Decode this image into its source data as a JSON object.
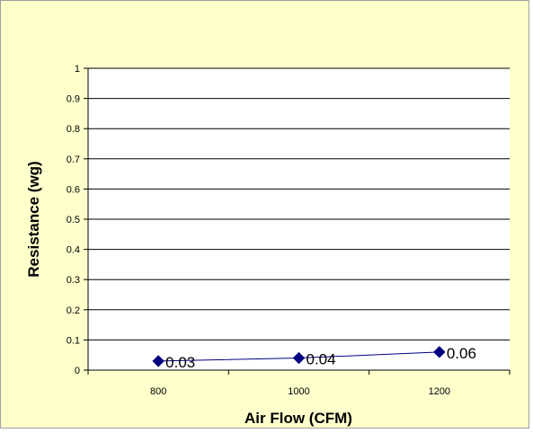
{
  "chart_data": {
    "type": "line",
    "title": "",
    "xlabel": "Air Flow (CFM)",
    "ylabel": "Resistance (wg)",
    "categories": [
      "800",
      "1000",
      "1200"
    ],
    "series": [
      {
        "values": [
          0.03,
          0.04,
          0.06
        ],
        "labels": [
          "0.03",
          "0.04",
          "0.06"
        ]
      }
    ],
    "ylim": [
      0,
      1
    ],
    "yticks": [
      0,
      0.1,
      0.2,
      0.3,
      0.4,
      0.5,
      0.6,
      0.7,
      0.8,
      0.9,
      1
    ],
    "ytick_labels": [
      "0",
      "0.1",
      "0.2",
      "0.3",
      "0.4",
      "0.5",
      "0.6",
      "0.7",
      "0.8",
      "0.9",
      "1"
    ],
    "grid": true,
    "legend": "none",
    "colors": {
      "background": "#ffffcc",
      "plot_area": "#ffffff",
      "line": "#000080",
      "marker": "#000080",
      "gridline": "#000000"
    }
  }
}
